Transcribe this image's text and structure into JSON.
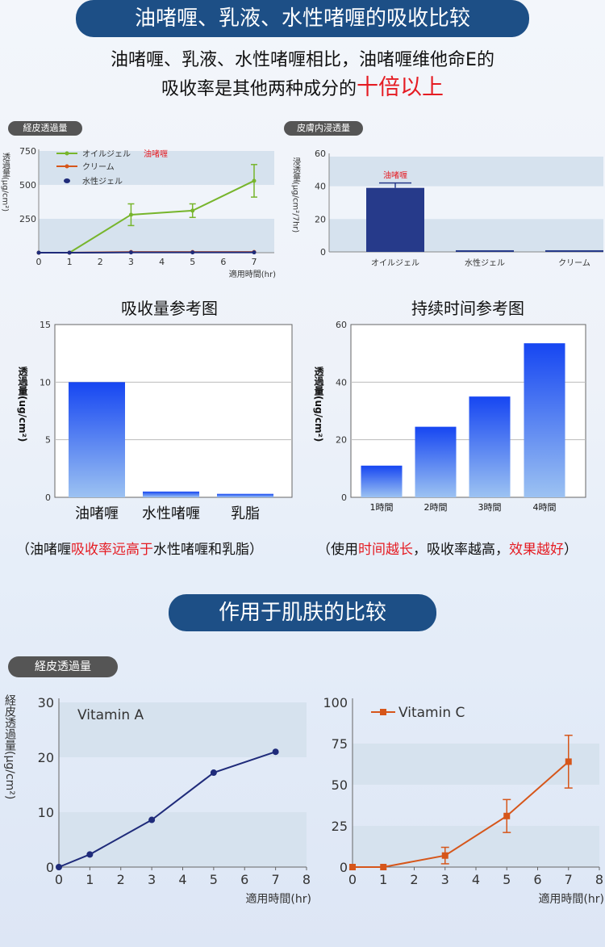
{
  "header": {
    "title": "油啫喱、乳液、水性啫喱的吸收比较",
    "subtitle_line1": "油啫喱、乳液、水性啫喱相比，油啫喱维他命E的",
    "subtitle_line2_prefix": "吸收率是其他两种成分的",
    "subtitle_line2_highlight": "十倍以上"
  },
  "section2": {
    "title": "作用于肌肤的比较"
  },
  "captions": {
    "absorb": {
      "pre": "（油啫喱",
      "red": "吸收率远高于",
      "post": "水性啫喱和乳脂）"
    },
    "duration": {
      "pre": "（使用",
      "red1": "时间越长",
      "mid": "，吸收率越高，",
      "red2": "效果越好",
      "post": "）"
    }
  },
  "colors": {
    "navy": "#1d4f86",
    "red": "#e51c23",
    "green": "#77b52c",
    "orange": "#d6561a",
    "navy_line": "#1f2b7a",
    "band": "#d6e2ee"
  },
  "chart_data": [
    {
      "id": "c1",
      "type": "line",
      "tag": "経皮透過量",
      "ylabel": "透過量(μg/cm²)",
      "xlabel": "適用時間(hr)",
      "x_ticks": [
        0,
        1,
        2,
        3,
        4,
        5,
        6,
        7
      ],
      "y_ticks": [
        250,
        500,
        750
      ],
      "ylim": [
        0,
        750
      ],
      "xlim": [
        0,
        8
      ],
      "series": [
        {
          "name": "オイルジェル",
          "name_extra": "油啫喱",
          "color": "#77b52c",
          "x": [
            0,
            1,
            3,
            5,
            7
          ],
          "values": [
            0,
            0,
            280,
            310,
            530
          ],
          "err": [
            0,
            0,
            80,
            50,
            120
          ]
        },
        {
          "name": "クリーム",
          "color": "#d6561a",
          "x": [
            0,
            1,
            3,
            5,
            7
          ],
          "values": [
            0,
            0,
            5,
            5,
            5
          ]
        },
        {
          "name": "水性ジェル",
          "color": "#1f2b7a",
          "x": [
            0,
            1,
            3,
            5,
            7
          ],
          "values": [
            0,
            0,
            2,
            2,
            2
          ]
        }
      ]
    },
    {
      "id": "c2",
      "type": "bar",
      "tag": "皮膚内浸透量",
      "ylabel": "浸透量(μg/cm²/7hr)",
      "categories": [
        "オイルジェル",
        "水性ジェル",
        "クリーム"
      ],
      "values": [
        39,
        1,
        1
      ],
      "err": [
        3,
        0,
        0
      ],
      "ylim": [
        0,
        60
      ],
      "y_ticks": [
        0,
        20,
        40,
        60
      ],
      "annotation": "油啫喱"
    },
    {
      "id": "c3",
      "type": "bar",
      "title": "吸收量参考图",
      "ylabel": "透過量(ug/cm²)",
      "categories": [
        "油啫喱",
        "水性啫喱",
        "乳脂"
      ],
      "values": [
        10,
        0.5,
        0.3
      ],
      "ylim": [
        0,
        15
      ],
      "y_ticks": [
        0,
        5,
        10,
        15
      ]
    },
    {
      "id": "c4",
      "type": "bar",
      "title": "持续时间参考图",
      "ylabel": "透過量(ug/cm²)",
      "categories": [
        "1時間",
        "2時間",
        "3時間",
        "4時間"
      ],
      "values": [
        11,
        24.5,
        35,
        53.5
      ],
      "ylim": [
        0,
        60
      ],
      "y_ticks": [
        0,
        20,
        40,
        60
      ]
    },
    {
      "id": "c5",
      "type": "line",
      "tag": "経皮透過量",
      "ylabel": "経皮透過量(μg/cm²)",
      "xlabel": "適用時間(hr)",
      "x_ticks": [
        0,
        1,
        2,
        3,
        4,
        5,
        6,
        7,
        8
      ],
      "y_ticks": [
        0,
        10,
        20,
        30
      ],
      "ylim": [
        0,
        30
      ],
      "xlim": [
        0,
        8
      ],
      "series": [
        {
          "name": "Vitamin A",
          "color": "#1f2b7a",
          "x": [
            0,
            1,
            3,
            5,
            7
          ],
          "values": [
            0,
            2.3,
            8.6,
            17.2,
            21
          ]
        }
      ]
    },
    {
      "id": "c6",
      "type": "line",
      "xlabel": "適用時間(hr)",
      "x_ticks": [
        0,
        1,
        2,
        3,
        4,
        5,
        6,
        7,
        8
      ],
      "y_ticks": [
        0,
        25,
        50,
        75,
        100
      ],
      "ylim": [
        0,
        100
      ],
      "xlim": [
        0,
        8
      ],
      "series": [
        {
          "name": "Vitamin C",
          "color": "#d6561a",
          "x": [
            0,
            1,
            3,
            5,
            7
          ],
          "values": [
            0,
            0,
            7,
            31,
            64
          ],
          "err": [
            0,
            0,
            5,
            10,
            16
          ]
        }
      ]
    }
  ]
}
